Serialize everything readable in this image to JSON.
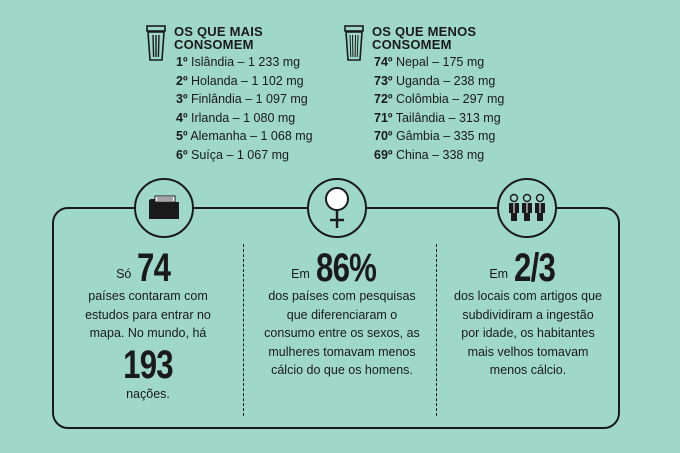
{
  "most": {
    "title": "OS QUE MAIS CONSOMEM",
    "items": [
      {
        "pos": "1º",
        "text": " Islândia – 1 233 mg"
      },
      {
        "pos": "2º",
        "text": " Holanda – 1 102 mg"
      },
      {
        "pos": "3º",
        "text": " Finlândia – 1 097 mg"
      },
      {
        "pos": "4º",
        "text": " Irlanda – 1 080 mg"
      },
      {
        "pos": "5º",
        "text": " Alemanha – 1 068 mg"
      },
      {
        "pos": "6º",
        "text": " Suíça – 1 067 mg"
      }
    ]
  },
  "least": {
    "title": "OS QUE MENOS CONSOMEM",
    "items": [
      {
        "pos": "74º",
        "text": " Nepal – 175 mg"
      },
      {
        "pos": "73º",
        "text": " Uganda – 238 mg"
      },
      {
        "pos": "72º",
        "text": " Colômbia – 297 mg"
      },
      {
        "pos": "71º",
        "text": " Tailândia – 313 mg"
      },
      {
        "pos": "70º",
        "text": " Gâmbia – 335 mg"
      },
      {
        "pos": "69º",
        "text": " China – 338 mg"
      }
    ]
  },
  "stats": [
    {
      "icon": "folder-icon",
      "pre": "Só",
      "big": "74",
      "desc": "países contaram com estudos para entrar no mapa. No mundo, há",
      "big2": "193",
      "post": "nações."
    },
    {
      "icon": "female-symbol-icon",
      "pre": "Em",
      "big": "86%",
      "desc": "dos países com pesquisas que diferenciaram o consumo entre os sexos, as mulheres tomavam menos cálcio do que os homens."
    },
    {
      "icon": "people-group-icon",
      "pre": "Em",
      "big": "2/3",
      "desc": "dos locais com artigos que subdividiram a ingestão por idade, os habitantes mais velhos tomavam menos cálcio."
    }
  ],
  "colors": {
    "background": "#9fd8c8",
    "ink": "#1a1a1a"
  }
}
